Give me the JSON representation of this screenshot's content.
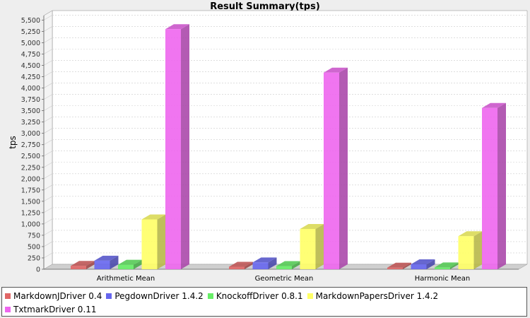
{
  "chart_data": {
    "type": "bar",
    "title": "Result Summary(tps)",
    "xlabel": "",
    "ylabel": "tps",
    "ylim": [
      0,
      5600
    ],
    "y_ticks": [
      0,
      250,
      500,
      750,
      1000,
      1250,
      1500,
      1750,
      2000,
      2250,
      2500,
      2750,
      3000,
      3250,
      3500,
      3750,
      4000,
      4250,
      4500,
      4750,
      5000,
      5250,
      5500
    ],
    "y_tick_labels": [
      "0",
      "250",
      "500",
      "750",
      "1,000",
      "1,250",
      "1,500",
      "1,750",
      "2,000",
      "2,250",
      "2,500",
      "2,750",
      "3,000",
      "3,250",
      "3,500",
      "3,750",
      "4,000",
      "4,250",
      "4,500",
      "4,750",
      "5,000",
      "5,250",
      "5,500"
    ],
    "categories": [
      "Arithmetic Mean",
      "Geometric Mean",
      "Harmonic Mean"
    ],
    "series": [
      {
        "name": "MarkdownJDriver 0.4",
        "color": "#e06666",
        "values": [
          75,
          55,
          35
        ]
      },
      {
        "name": "PegdownDriver 1.4.2",
        "color": "#6666ee",
        "values": [
          190,
          150,
          110
        ]
      },
      {
        "name": "KnockoffDriver 0.8.1",
        "color": "#66ee66",
        "values": [
          100,
          70,
          40
        ]
      },
      {
        "name": "MarkdownPapersDriver 1.4.2",
        "color": "#ffff66",
        "values": [
          1100,
          890,
          730
        ]
      },
      {
        "name": "TxtmarkDriver 0.11",
        "color": "#ee66ee",
        "values": [
          5300,
          4340,
          3560
        ]
      }
    ],
    "grid": true,
    "style": "3d",
    "legend_position": "bottom"
  }
}
